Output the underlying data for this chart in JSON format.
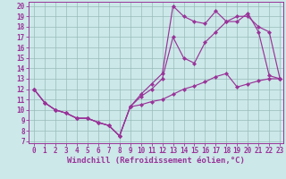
{
  "bg_color": "#cce8e8",
  "line_color": "#993399",
  "xlabel": "Windchill (Refroidissement éolien,°C)",
  "xlim_min": -0.5,
  "xlim_max": 23.3,
  "ylim_min": 6.8,
  "ylim_max": 20.4,
  "xticks": [
    0,
    1,
    2,
    3,
    4,
    5,
    6,
    7,
    8,
    9,
    10,
    11,
    12,
    13,
    14,
    15,
    16,
    17,
    18,
    19,
    20,
    21,
    22,
    23
  ],
  "yticks": [
    7,
    8,
    9,
    10,
    11,
    12,
    13,
    14,
    15,
    16,
    17,
    18,
    19,
    20
  ],
  "tick_fontsize": 5.5,
  "xlabel_fontsize": 6.5,
  "grid_color": "#99bbbb",
  "marker": "D",
  "markersize": 2.2,
  "linewidth": 0.85,
  "curve1_x": [
    0,
    1,
    2,
    3,
    4,
    5,
    6,
    7,
    8,
    9,
    10,
    11,
    12,
    13,
    14,
    15,
    16,
    17,
    18,
    19,
    20,
    21,
    22,
    23
  ],
  "curve1_y": [
    12,
    10.7,
    10,
    9.7,
    9.2,
    9.2,
    8.8,
    8.5,
    7.5,
    10.3,
    11.5,
    12.5,
    13.5,
    20.0,
    19.0,
    18.5,
    18.3,
    19.5,
    18.5,
    19.0,
    19.0,
    18.0,
    17.5,
    13.0
  ],
  "curve2_x": [
    0,
    1,
    2,
    3,
    4,
    5,
    6,
    7,
    8,
    9,
    10,
    11,
    12,
    13,
    14,
    15,
    16,
    17,
    18,
    19,
    20,
    21,
    22,
    23
  ],
  "curve2_y": [
    12,
    10.7,
    10,
    9.7,
    9.2,
    9.2,
    8.8,
    8.5,
    7.5,
    10.3,
    11.3,
    12.0,
    13.0,
    17.0,
    15.0,
    14.5,
    16.5,
    17.5,
    18.5,
    18.5,
    19.3,
    17.5,
    13.3,
    13.0
  ],
  "curve3_x": [
    0,
    1,
    2,
    3,
    4,
    5,
    6,
    7,
    8,
    9,
    10,
    11,
    12,
    13,
    14,
    15,
    16,
    17,
    18,
    19,
    20,
    21,
    22,
    23
  ],
  "curve3_y": [
    12,
    10.7,
    10,
    9.7,
    9.2,
    9.2,
    8.8,
    8.5,
    7.5,
    10.3,
    10.5,
    10.8,
    11.0,
    11.5,
    12.0,
    12.3,
    12.7,
    13.2,
    13.5,
    12.2,
    12.5,
    12.8,
    13.0,
    13.0
  ]
}
